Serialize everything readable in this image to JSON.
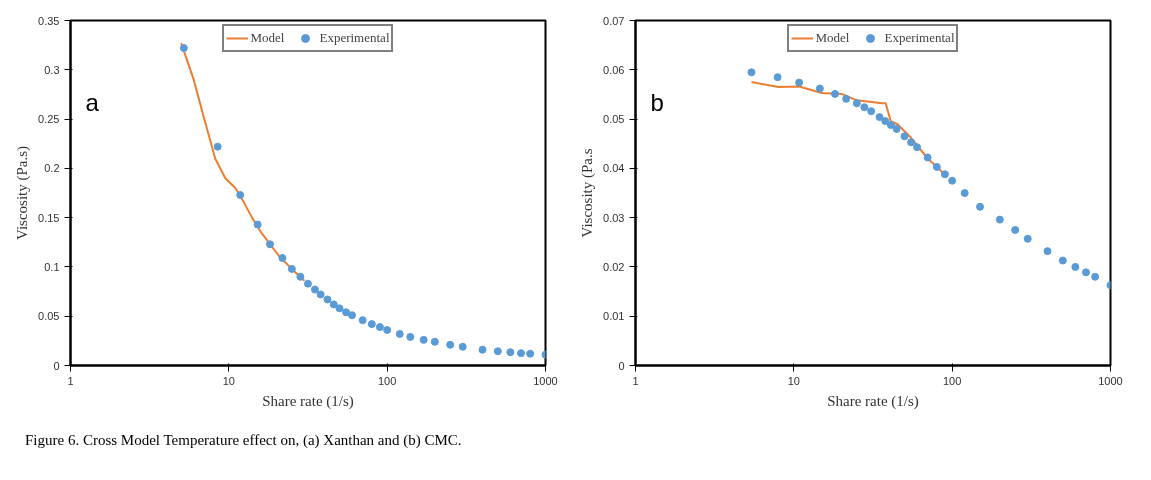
{
  "chart_data": [
    {
      "type": "line",
      "xlabel": "Share rate (1/s)",
      "ylabel": "Viscosity (Pa.s)",
      "annotations": [
        "a",
        "Figure 6. Cross Model Temperature effect on, (a) Xanthan and (b) CMC."
      ],
      "log": "x",
      "xlim": [
        1,
        1000
      ],
      "xticks": [
        1,
        10,
        100,
        1000
      ],
      "ylim": [
        0,
        0.35
      ],
      "yticks": [
        0,
        0.05,
        0.1,
        0.15,
        0.2,
        0.25,
        0.3,
        0.35
      ],
      "grid": false,
      "legend": "top",
      "series": [
        {
          "name": "Model",
          "color": "#ed7d31",
          "type": "line",
          "marker": "none",
          "x": [
            5,
            6,
            7,
            8.2,
            9.5,
            11,
            12.5,
            14,
            16,
            18,
            21,
            25,
            30
          ],
          "values": [
            0.327,
            0.29,
            0.25,
            0.21,
            0.19,
            0.18,
            0.165,
            0.15,
            0.135,
            0.124,
            0.11,
            0.098,
            0.086
          ]
        },
        {
          "name": "Experimental",
          "color": "#5b9bd5",
          "type": "scatter",
          "marker": "circle",
          "x": [
            5.2,
            8.5,
            11.8,
            15.2,
            18.2,
            21.8,
            25,
            28.3,
            31.6,
            35,
            38,
            42,
            46,
            50,
            55,
            60,
            70,
            80,
            90,
            100,
            120,
            140,
            170,
            200,
            250,
            300,
            400,
            500,
            600,
            700,
            800,
            1000
          ],
          "values": [
            0.322,
            0.222,
            0.173,
            0.143,
            0.123,
            0.109,
            0.098,
            0.09,
            0.083,
            0.077,
            0.072,
            0.067,
            0.062,
            0.058,
            0.054,
            0.051,
            0.046,
            0.042,
            0.039,
            0.036,
            0.032,
            0.029,
            0.026,
            0.024,
            0.021,
            0.019,
            0.016,
            0.0145,
            0.0135,
            0.0125,
            0.012,
            0.011
          ]
        }
      ]
    },
    {
      "type": "line",
      "xlabel": "Share rate (1/s)",
      "ylabel": "Viscosity (Pa.s",
      "annotations": [
        "b"
      ],
      "log": "x",
      "xlim": [
        1,
        1000
      ],
      "xticks": [
        1,
        10,
        100,
        1000
      ],
      "ylim": [
        0,
        0.07
      ],
      "yticks": [
        0,
        0.01,
        0.02,
        0.03,
        0.04,
        0.05,
        0.06,
        0.07
      ],
      "grid": false,
      "legend": "top",
      "series": [
        {
          "name": "Model",
          "color": "#ed7d31",
          "type": "line",
          "marker": "none",
          "x": [
            5.4,
            8,
            10.8,
            15,
            20,
            25,
            30,
            36,
            38,
            41,
            45,
            55,
            70,
            85,
            91
          ],
          "values": [
            0.0575,
            0.0565,
            0.0566,
            0.0553,
            0.0551,
            0.0538,
            0.0535,
            0.0532,
            0.0532,
            0.0495,
            0.049,
            0.0462,
            0.042,
            0.0395,
            0.0385
          ]
        },
        {
          "name": "Experimental",
          "color": "#5b9bd5",
          "type": "scatter",
          "marker": "circle",
          "x": [
            5.4,
            7.9,
            10.8,
            14.6,
            18.2,
            21.4,
            25,
            27.9,
            30.8,
            34.8,
            37.8,
            41,
            44.6,
            50,
            55,
            60,
            70,
            80,
            90,
            100,
            120,
            150,
            200,
            250,
            300,
            400,
            500,
            600,
            700,
            800,
            1000
          ],
          "values": [
            0.0595,
            0.0585,
            0.0574,
            0.0562,
            0.0551,
            0.0541,
            0.0532,
            0.0524,
            0.0516,
            0.0504,
            0.0496,
            0.0488,
            0.048,
            0.0465,
            0.0453,
            0.0443,
            0.0422,
            0.0403,
            0.0388,
            0.0375,
            0.035,
            0.0322,
            0.0296,
            0.0275,
            0.0257,
            0.0232,
            0.0213,
            0.02,
            0.0189,
            0.018,
            0.0163
          ]
        }
      ]
    }
  ]
}
